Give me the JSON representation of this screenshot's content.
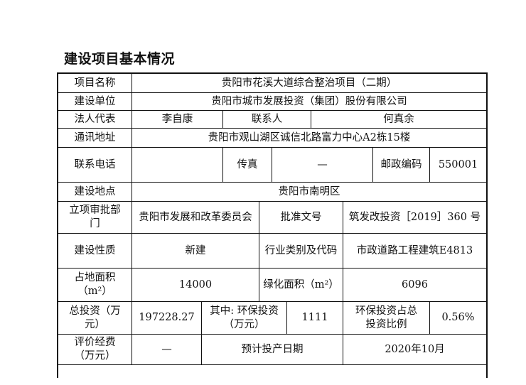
{
  "title": "建设项目基本情况",
  "rows": {
    "project_name": {
      "label": "项目名称",
      "value": "贵阳市花溪大道综合整治项目（二期）"
    },
    "builder": {
      "label": "建设单位",
      "value": "贵阳市城市发展投资（集团）股份有限公司"
    },
    "legal_rep": {
      "label": "法人代表",
      "value": "李自康",
      "contact_label": "联系人",
      "contact_value": "何真余"
    },
    "address": {
      "label": "通讯地址",
      "value": "贵阳市观山湖区诚信北路富力中心A2栋15楼"
    },
    "phone": {
      "label": "联系电话",
      "value": "",
      "fax_label": "传真",
      "fax_value": "—",
      "postcode_label": "邮政编码",
      "postcode_value": "550001"
    },
    "site": {
      "label": "建设地点",
      "value": "贵阳市南明区"
    },
    "approval": {
      "label": "立项审批部门",
      "value": "贵阳市发展和改革委员会",
      "doc_label": "批准文号",
      "doc_value": "筑发改投资［2019］360 号"
    },
    "nature": {
      "label": "建设性质",
      "value": "新建",
      "industry_label": "行业类别及代码",
      "industry_value": "市政道路工程建筑E4813"
    },
    "area": {
      "label": "占地面积（m²）",
      "value": "14000",
      "green_label": "绿化面积（m²）",
      "green_value": "6096"
    },
    "investment": {
      "label": "总投资（万元）",
      "value": "197228.27",
      "env_label": "其中: 环保投资（万元）",
      "env_value": "1111",
      "ratio_label": "环保投资占总投资比例",
      "ratio_value": "0.56%"
    },
    "eval": {
      "label": "评价经费（万元）",
      "value": "—",
      "date_label": "预计投产日期",
      "date_value": "2020年10月"
    }
  }
}
